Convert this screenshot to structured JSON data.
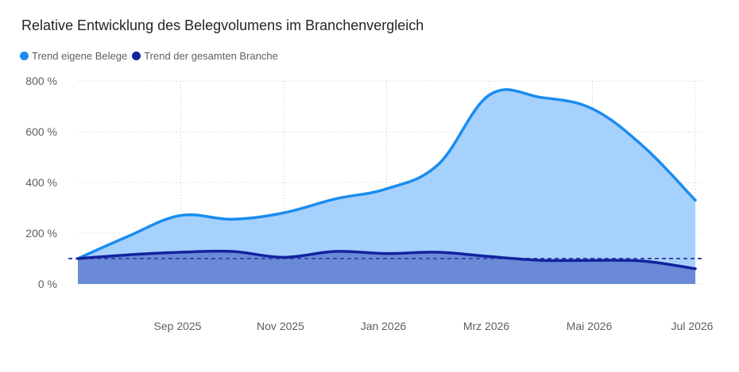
{
  "title": "Relative Entwicklung des Belegvolumens im Branchenvergleich",
  "colors": {
    "own_line": "#1a8cf0",
    "own_area": "#a6d1fd",
    "branch_line": "#12239e",
    "branch_area": "#6a8ad8",
    "reference": "#3d4aa8",
    "grid": "#c8c8c8"
  },
  "legend": [
    {
      "name": "Trend eigene Belege",
      "color": "#1a8cf0"
    },
    {
      "name": "Trend der gesamten Branche",
      "color": "#12239e"
    }
  ],
  "chart_data": {
    "type": "area",
    "title": "Relative Entwicklung des Belegvolumens im Branchenvergleich",
    "xlabel": "",
    "ylabel": "",
    "x": [
      "2025-07",
      "2025-08",
      "2025-09",
      "2025-10",
      "2025-11",
      "2025-12",
      "2026-01",
      "2026-02",
      "2026-03",
      "2026-04",
      "2026-05",
      "2026-06",
      "2026-07"
    ],
    "x_ticks": [
      "Sep 2025",
      "Nov 2025",
      "Jan 2026",
      "Mrz 2026",
      "Mai 2026",
      "Jul 2026"
    ],
    "y_ticks": [
      "800 %",
      "600 %",
      "400 %",
      "200 %",
      "0 %"
    ],
    "ylim": [
      0,
      800
    ],
    "reference_line": 100,
    "grid": true,
    "legend_position": "top-left",
    "series": [
      {
        "name": "Trend eigene Belege",
        "values": [
          100,
          190,
          270,
          255,
          280,
          335,
          375,
          470,
          745,
          735,
          690,
          540,
          330
        ]
      },
      {
        "name": "Trend der gesamten Branche",
        "values": [
          100,
          115,
          125,
          128,
          105,
          128,
          120,
          125,
          108,
          93,
          93,
          90,
          60
        ]
      }
    ]
  }
}
